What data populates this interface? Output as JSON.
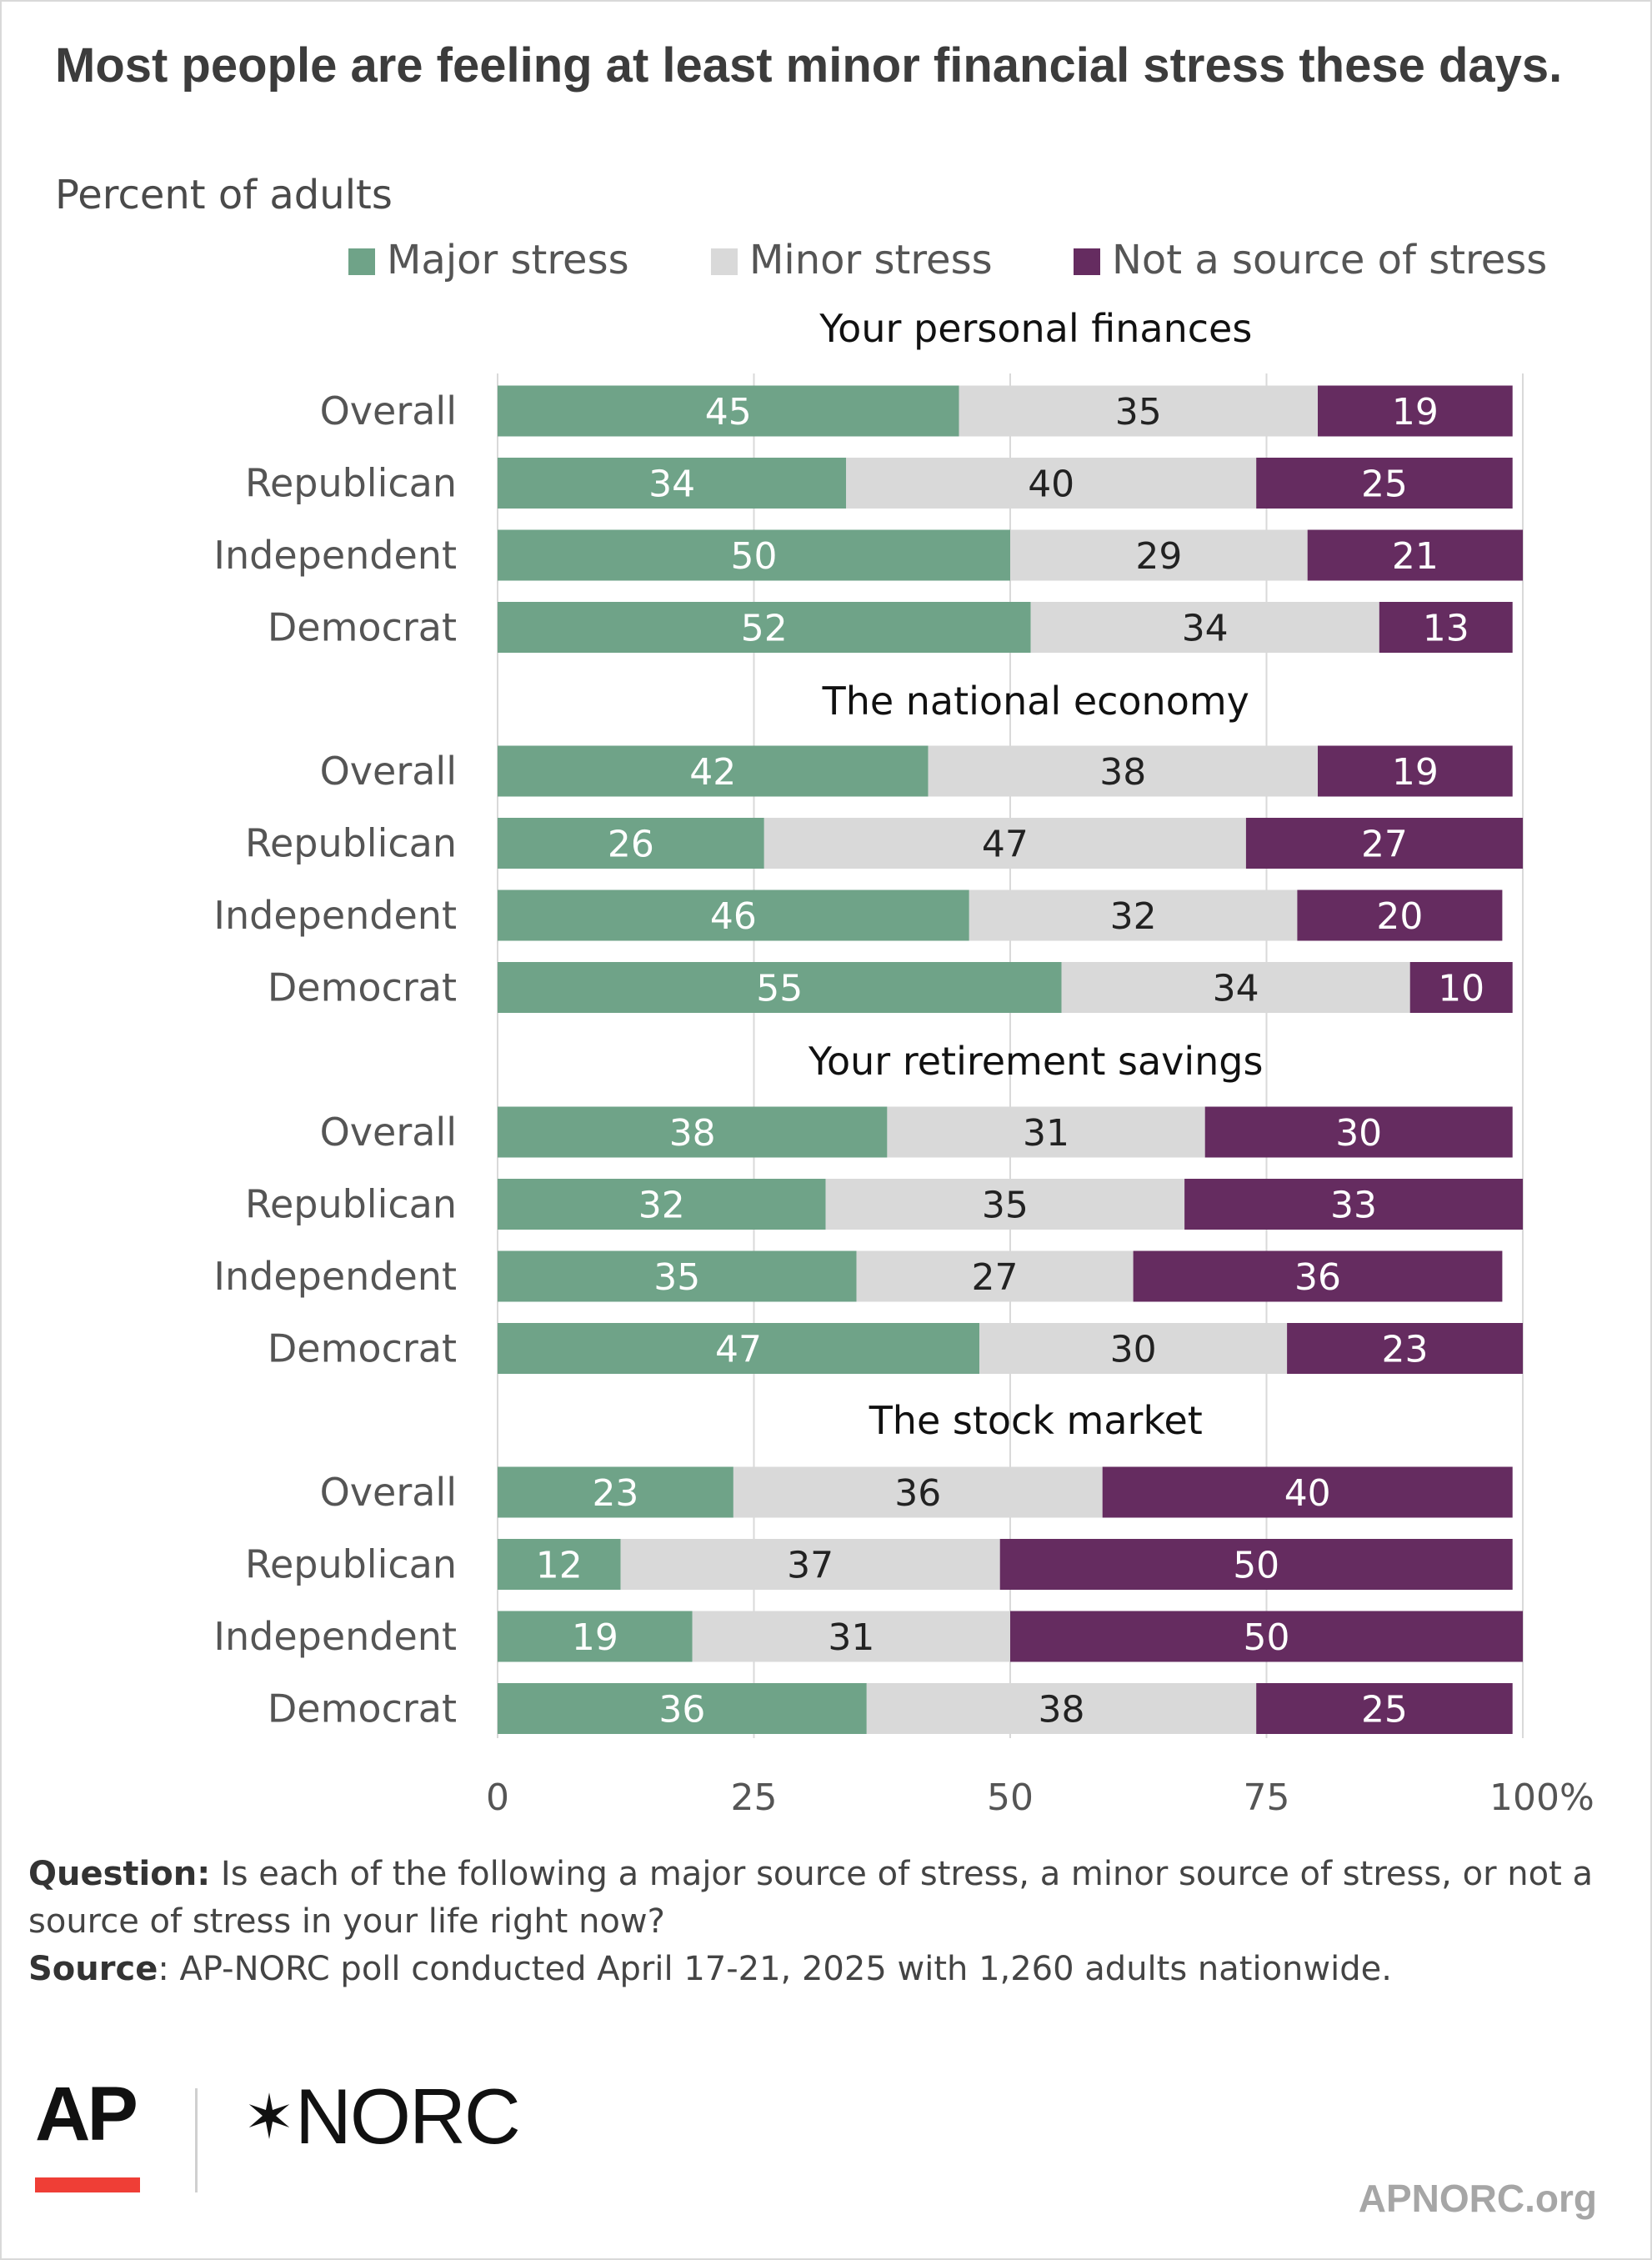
{
  "title": "Most people are feeling at least minor financial stress these days.",
  "subtitle": "Percent of adults",
  "colors": {
    "major": "#6fa388",
    "minor": "#d9d9d9",
    "not": "#652c60",
    "gridline": "#d9d9d9",
    "label_dark": "#222222",
    "label_light": "#ffffff",
    "text": "#555555"
  },
  "chart_data": {
    "type": "bar",
    "orientation": "horizontal",
    "stacked": true,
    "xlim": [
      0,
      100
    ],
    "x_ticks": [
      "0",
      "25",
      "50",
      "75",
      "100%"
    ],
    "grid": true,
    "legend_placement": "top",
    "legend": [
      "Major stress",
      "Minor stress",
      "Not a source of stress"
    ],
    "groups": [
      {
        "title": "Your personal finances",
        "categories": [
          "Overall",
          "Republican",
          "Independent",
          "Democrat"
        ],
        "series": [
          {
            "name": "Major stress",
            "values": [
              45,
              34,
              50,
              52
            ]
          },
          {
            "name": "Minor stress",
            "values": [
              35,
              40,
              29,
              34
            ]
          },
          {
            "name": "Not a source of stress",
            "values": [
              19,
              25,
              21,
              13
            ]
          }
        ]
      },
      {
        "title": "The national economy",
        "categories": [
          "Overall",
          "Republican",
          "Independent",
          "Democrat"
        ],
        "series": [
          {
            "name": "Major stress",
            "values": [
              42,
              26,
              46,
              55
            ]
          },
          {
            "name": "Minor stress",
            "values": [
              38,
              47,
              32,
              34
            ]
          },
          {
            "name": "Not a source of stress",
            "values": [
              19,
              27,
              20,
              10
            ]
          }
        ]
      },
      {
        "title": "Your retirement savings",
        "categories": [
          "Overall",
          "Republican",
          "Independent",
          "Democrat"
        ],
        "series": [
          {
            "name": "Major stress",
            "values": [
              38,
              32,
              35,
              47
            ]
          },
          {
            "name": "Minor stress",
            "values": [
              31,
              35,
              27,
              30
            ]
          },
          {
            "name": "Not a source of stress",
            "values": [
              30,
              33,
              36,
              23
            ]
          }
        ]
      },
      {
        "title": "The stock market",
        "categories": [
          "Overall",
          "Republican",
          "Independent",
          "Democrat"
        ],
        "series": [
          {
            "name": "Major stress",
            "values": [
              23,
              12,
              19,
              36
            ]
          },
          {
            "name": "Minor stress",
            "values": [
              36,
              37,
              31,
              38
            ]
          },
          {
            "name": "Not a source of stress",
            "values": [
              40,
              50,
              50,
              25
            ]
          }
        ]
      }
    ]
  },
  "footnote": {
    "question_label": "Question:",
    "question_text": " Is each of the following a major source of stress, a minor source of stress, or not a source of stress in your life right now?",
    "source_label": "Source",
    "source_text": ": AP-NORC poll conducted April 17-21, 2025 with 1,260 adults nationwide."
  },
  "branding": {
    "ap_logo": "AP",
    "norc_logo": "NORC",
    "norc_star": "✶",
    "site": "APNORC.org"
  }
}
